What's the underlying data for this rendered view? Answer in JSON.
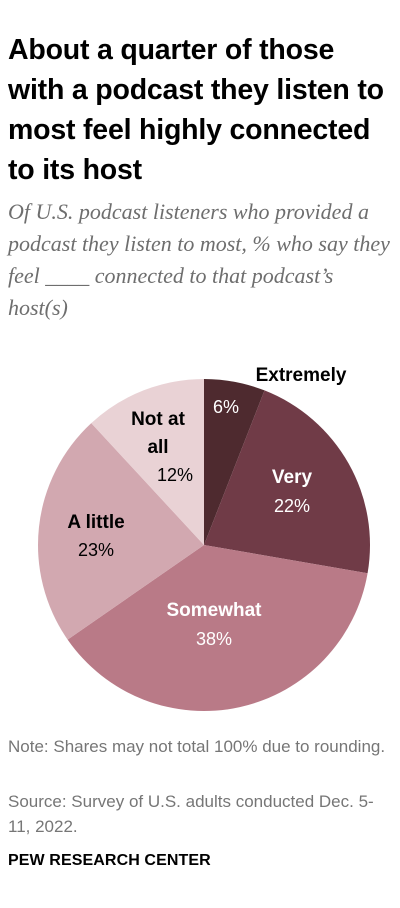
{
  "title": "About a quarter of those with a podcast they listen to most feel highly connected to its host",
  "subtitle": "Of U.S. podcast listeners who provided a podcast they listen to most, % who say they feel ____ connected to that podcast’s host(s)",
  "note": "Note: Shares may not total 100% due to rounding.",
  "source": "Source: Survey of U.S. adults conducted Dec. 5-11, 2022.",
  "brand": "PEW RESEARCH CENTER",
  "chart_data": {
    "type": "pie",
    "start": "12 o'clock, clockwise",
    "slices": [
      {
        "label": "Extremely",
        "value": 6,
        "value_label": "6%",
        "color": "#4e2a2f"
      },
      {
        "label": "Very",
        "value": 22,
        "value_label": "22%",
        "color": "#703b47"
      },
      {
        "label": "Somewhat",
        "value": 38,
        "value_label": "38%",
        "color": "#b97a87"
      },
      {
        "label": "A little",
        "value": 23,
        "value_label": "23%",
        "color": "#d2a8b0"
      },
      {
        "label": "Not at all",
        "value": 12,
        "value_label": "12%",
        "color": "#e9d2d5"
      }
    ]
  }
}
